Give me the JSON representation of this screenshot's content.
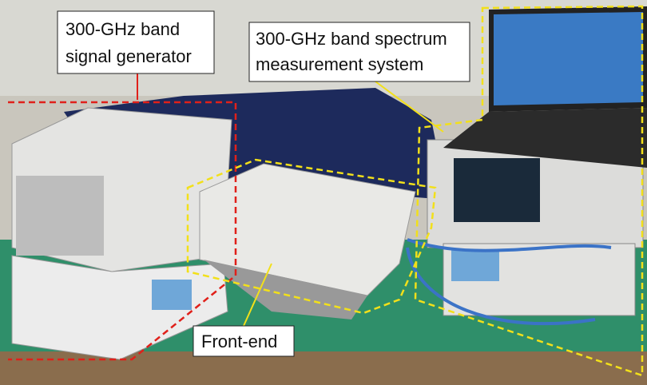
{
  "labels": [
    {
      "lines": [
        "300-GHz band",
        "signal generator"
      ]
    },
    {
      "lines": [
        "300-GHz band spectrum",
        "measurement system"
      ]
    },
    {
      "lines": [
        "Front-end"
      ]
    }
  ]
}
